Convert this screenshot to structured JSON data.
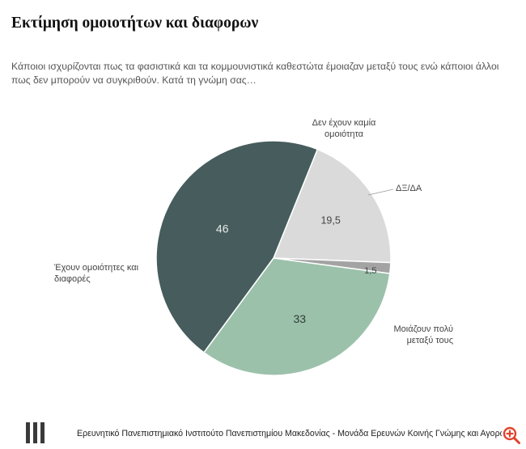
{
  "header": {
    "title": "Εκτίμηση ομοιοτήτων και διαφορων",
    "question": "Κάποιοι ισχυρίζονται πως τα φασιστικά και τα κομμουνιστικά καθεστώτα έμοιαζαν μεταξύ τους ενώ κάποιοι άλλοι πως δεν μπορούν να συγκριθούν. Κατά τη γνώμη σας…"
  },
  "chart_data": {
    "type": "pie",
    "title": "Εκτίμηση ομοιοτήτων και διαφορων",
    "slices": [
      {
        "label_lines": [
          "Δεν έχουν καμία",
          "ομοιότητα"
        ],
        "value": 19.5,
        "value_label": "19,5",
        "color": "#dadada"
      },
      {
        "label_lines": [
          "ΔΞ/ΔΑ"
        ],
        "value": 1.5,
        "value_label": "1,5",
        "color": "#a3a3a3"
      },
      {
        "label_lines": [
          "Μοιάζουν πολύ",
          "μεταξύ τους"
        ],
        "value": 33,
        "value_label": "33",
        "color": "#9cc1ab"
      },
      {
        "label_lines": [
          "Έχουν ομοιότητες και",
          "διαφορές"
        ],
        "value": 46,
        "value_label": "46",
        "color": "#475c5c"
      }
    ]
  },
  "footer": {
    "text": "Ερευνητικό Πανεπιστημιακό Ινστιτούτο Πανεπιστημίου Μακεδονίας - Μονάδα Ερευνών Κοινής Γνώμης και Αγοράς"
  },
  "icons": {
    "zoom": "zoom-in-icon",
    "logo": "university-logo-icon"
  }
}
